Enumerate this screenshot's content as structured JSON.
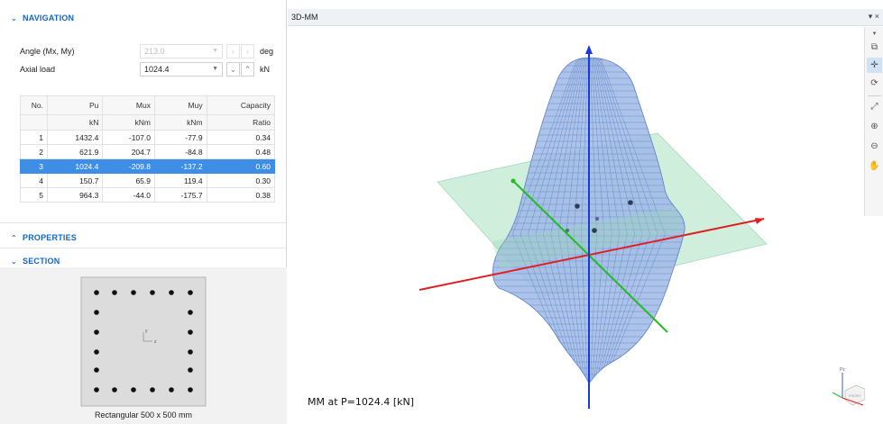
{
  "navigation": {
    "title": "NAVIGATION",
    "angle_label": "Angle (Mx, My)",
    "angle_value": "213.0",
    "angle_unit": "deg",
    "axial_label": "Axial load",
    "axial_value": "1024.4",
    "axial_unit": "kN"
  },
  "table": {
    "headers": [
      "No.",
      "Pu",
      "Mux",
      "Muy",
      "Capacity"
    ],
    "units": [
      "",
      "kN",
      "kNm",
      "kNm",
      "Ratio"
    ],
    "rows": [
      [
        "1",
        "1432.4",
        "-107.0",
        "-77.9",
        "0.34"
      ],
      [
        "2",
        "621.9",
        "204.7",
        "-84.8",
        "0.48"
      ],
      [
        "3",
        "1024.4",
        "-209.8",
        "-137.2",
        "0.60"
      ],
      [
        "4",
        "150.7",
        "65.9",
        "119.4",
        "0.30"
      ],
      [
        "5",
        "964.3",
        "-44.0",
        "-175.7",
        "0.38"
      ]
    ],
    "selected_row": 2
  },
  "properties": {
    "title": "PROPERTIES"
  },
  "section": {
    "title": "SECTION",
    "caption": "Rectangular 500 x 500 mm",
    "axis_y": "y",
    "axis_z": "z"
  },
  "viewport": {
    "tab_title": "3D-MM",
    "controls": "▾ ×",
    "label": "MM at P=1024.4 [kN]",
    "cube_label": "FRONT",
    "axis_z_label": "Pz"
  },
  "icons": {
    "nav_chevron": "chevron-down-icon",
    "props_chevron": "chevron-up-icon",
    "section_chevron": "chevron-down-icon"
  },
  "colors": {
    "accent": "#1565c0",
    "selection": "#3f8ee6",
    "mesh_fill": "#9fb8e6",
    "mesh_line": "#5a7fc4",
    "plane": "#bfe8d0",
    "axis_x": "#e02020",
    "axis_y": "#22bb22",
    "axis_z": "#1a3ad6"
  }
}
